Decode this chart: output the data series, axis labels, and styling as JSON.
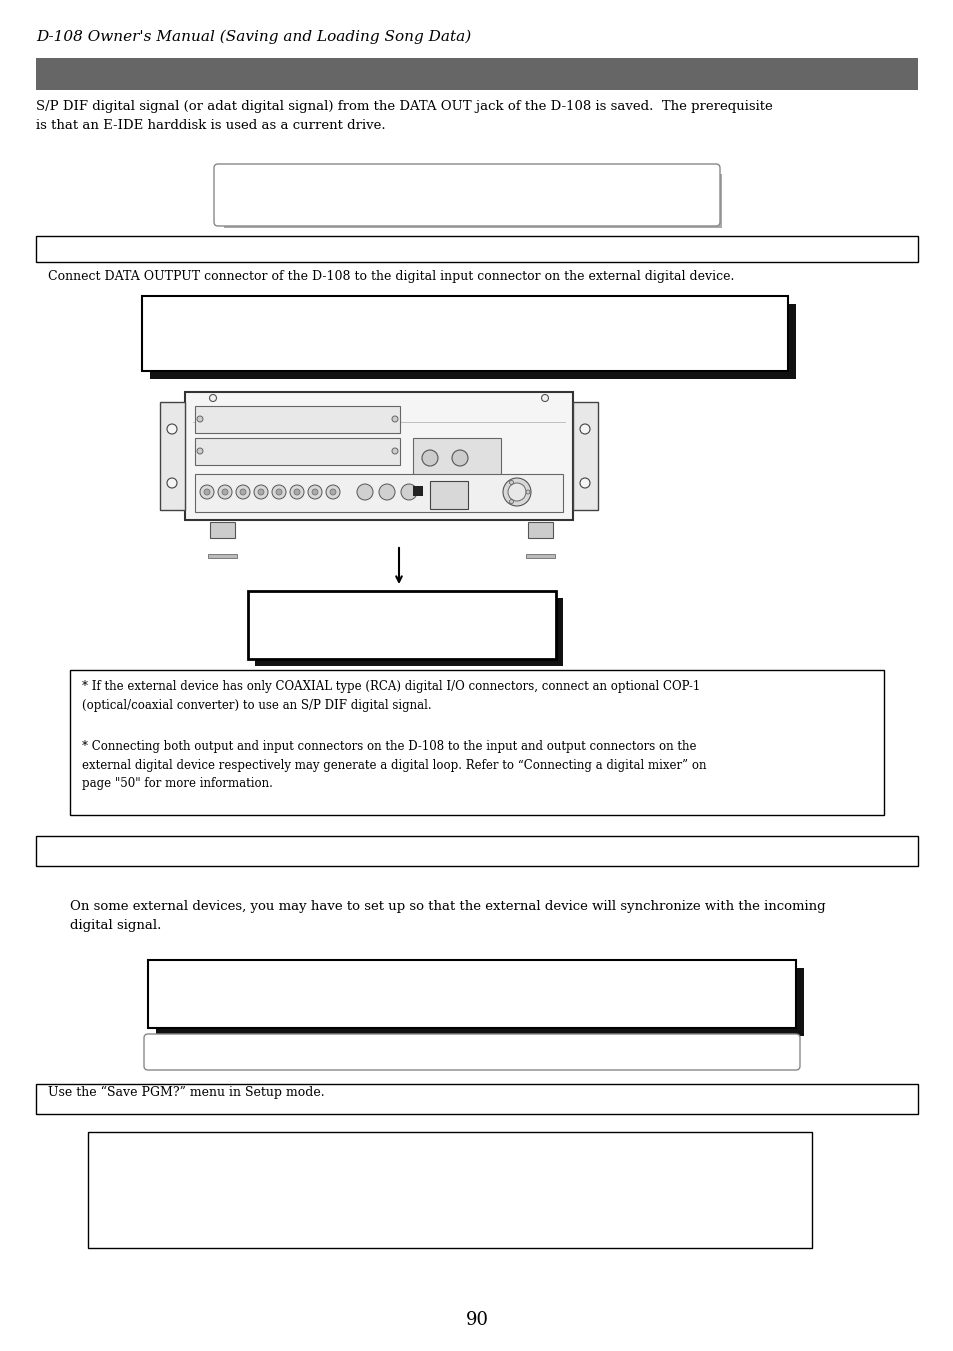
{
  "title": "D-108 Owner's Manual (Saving and Loading Song Data)",
  "dark_bar_color": "#666666",
  "light_box_color": "#ffffff",
  "border_color": "#000000",
  "shadow_color": "#444444",
  "bg_color": "#ffffff",
  "text_color": "#000000",
  "body_text_1": "S/P DIF digital signal (or adat digital signal) from the DATA OUT jack of the D-108 is saved.  The prerequisite\nis that an E-IDE harddisk is used as a current drive.",
  "connect_text": "   Connect DATA OUTPUT connector of the D-108 to the digital input connector on the external digital device.",
  "note_text_1": "* If the external device has only COAXIAL type (RCA) digital I/O connectors, connect an optional COP-1\n(optical/coaxial converter) to use an S/P DIF digital signal.",
  "note_text_2": "* Connecting both output and input connectors on the D-108 to the input and output connectors on the\nexternal digital device respectively may generate a digital loop. Refer to “Connecting a digital mixer” on\npage \"50\" for more information.",
  "body_text_2": "On some external devices, you may have to set up so that the external device will synchronize with the incoming\ndigital signal.",
  "save_text": "   Use the “Save PGM?” menu in Setup mode.",
  "page_number": "90"
}
